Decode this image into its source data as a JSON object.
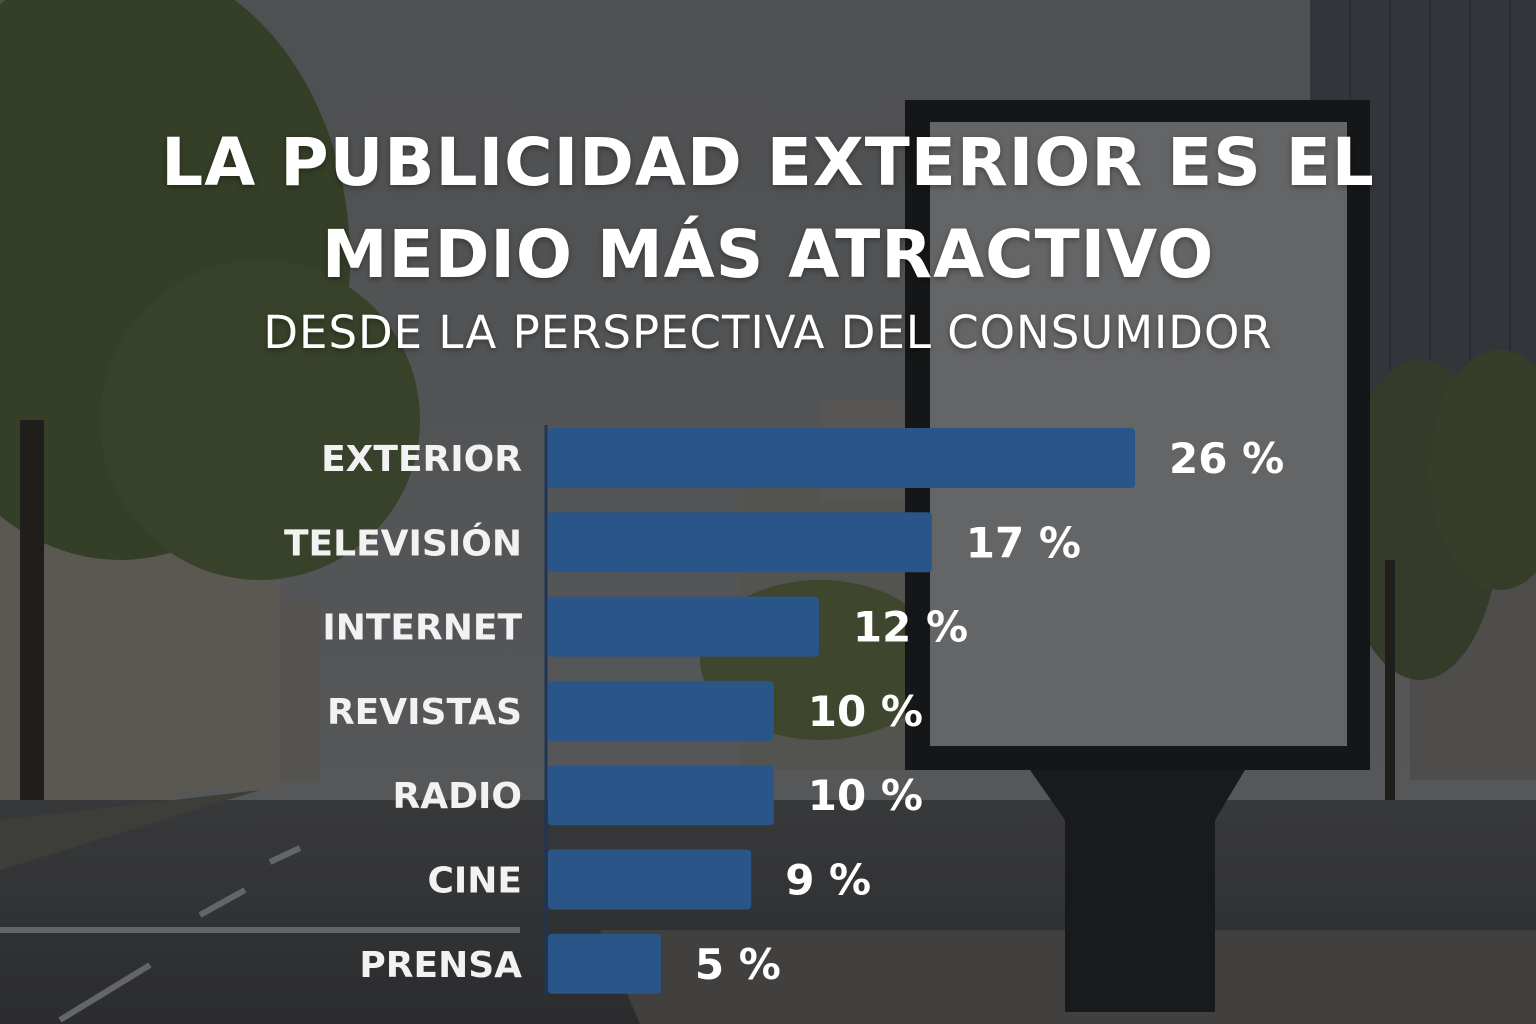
{
  "header": {
    "title_line1": "LA PUBLICIDAD EXTERIOR ES EL",
    "title_line2": "MEDIO MÁS ATRACTIVO",
    "subtitle": "DESDE LA PERSPECTIVA DEL CONSUMIDOR"
  },
  "colors": {
    "bar": "#2a5589",
    "text": "#ffffff",
    "axis": "#1f3556"
  },
  "chart_data": {
    "type": "bar",
    "orientation": "horizontal",
    "title": "LA PUBLICIDAD EXTERIOR ES EL MEDIO MÁS ATRACTIVO",
    "subtitle": "DESDE LA PERSPECTIVA DEL CONSUMIDOR",
    "categories": [
      "EXTERIOR",
      "TELEVISIÓN",
      "INTERNET",
      "REVISTAS",
      "RADIO",
      "CINE",
      "PRENSA"
    ],
    "values": [
      26,
      17,
      12,
      10,
      10,
      9,
      5
    ],
    "value_labels": [
      "26 %",
      "17 %",
      "12 %",
      "10 %",
      "10 %",
      "9 %",
      "5 %"
    ],
    "unit": "%",
    "xlim": [
      0,
      26
    ],
    "grid": false,
    "legend": "none"
  }
}
